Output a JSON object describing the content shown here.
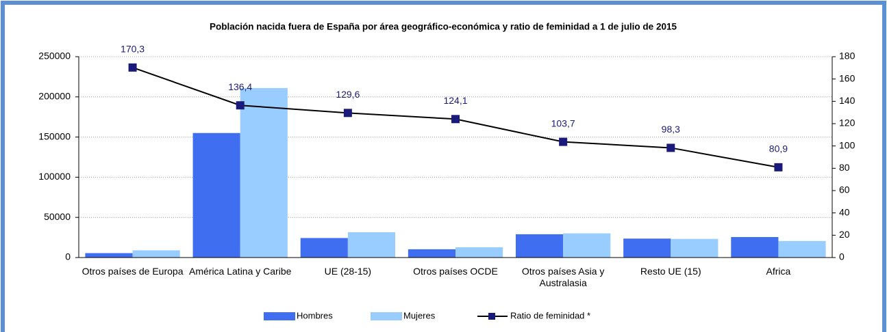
{
  "chart_data": {
    "type": "bar-line",
    "title": "Población nacida fuera de España por área geográfico-económica y ratio de feminidad a 1 de julio de 2015",
    "categories": [
      "Otros países de Europa",
      "América Latina y Caribe",
      "UE (28-15)",
      "Otros países OCDE",
      "Otros países Asia y Australasia",
      "Resto UE (15)",
      "Africa"
    ],
    "series": [
      {
        "name": "Hombres",
        "color": "#3f6ff0",
        "values": [
          5500,
          155000,
          24300,
          10300,
          29000,
          23600,
          25500
        ]
      },
      {
        "name": "Mujeres",
        "color": "#99ccff",
        "values": [
          9000,
          211000,
          31500,
          12800,
          30100,
          23200,
          20600
        ]
      },
      {
        "name": "Ratio de feminidad *",
        "color": "#000000",
        "marker_color": "#1a1a7a",
        "axis": "y2",
        "type": "line",
        "values": [
          170.3,
          136.4,
          129.6,
          124.1,
          103.7,
          98.3,
          80.9
        ],
        "value_labels": [
          "170,3",
          "136,4",
          "129,6",
          "124,1",
          "103,7",
          "98,3",
          "80,9"
        ]
      }
    ],
    "ylim": [
      0,
      250000
    ],
    "yticks": [
      0,
      50000,
      100000,
      150000,
      200000,
      250000
    ],
    "y2lim": [
      0,
      180
    ],
    "y2ticks": [
      0,
      20,
      40,
      60,
      80,
      100,
      120,
      140,
      160,
      180
    ],
    "grid": true,
    "legend": "bottom"
  }
}
